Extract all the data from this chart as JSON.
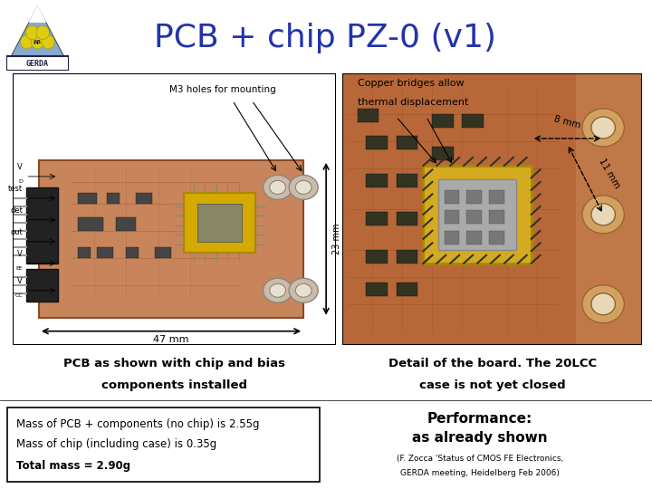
{
  "title": "PCB + chip PZ-0 (v1)",
  "title_color": "#2233aa",
  "title_fontsize": 26,
  "bg_color": "#ffffff",
  "left_panel_label": "M3 holes for mounting",
  "left_caption1": "PCB as shown with chip and bias",
  "left_caption2": "components installed",
  "right_caption1": "Detail of the board. The 20LCC",
  "right_caption2": "case is not yet closed",
  "copper_label1": "Copper bridges allow",
  "copper_label2": "thermal displacement",
  "dim_23mm": "23 mm",
  "dim_47mm": "47 mm",
  "dim_8mm": "8 mm",
  "dim_11mm": "11 mm",
  "mass_line1": "Mass of PCB + components (no chip) is 2.55g",
  "mass_line2": "Mass of chip (including case) is 0.35g",
  "mass_line3": "Total mass = 2.90g",
  "perf1": "Performance:",
  "perf2": "as already shown",
  "cite1": "(F. Zocca 'Status of CMOS FE Electronics,",
  "cite2": "GERDA meeting, Heidelberg Feb 2006)"
}
